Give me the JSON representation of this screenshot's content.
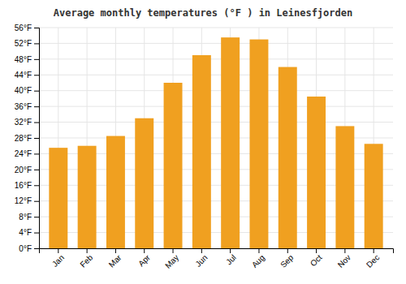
{
  "chart_data": {
    "type": "bar",
    "title": "Average monthly temperatures (°F ) in Leinesfjorden",
    "categories": [
      "Jan",
      "Feb",
      "Mar",
      "Apr",
      "May",
      "Jun",
      "Jul",
      "Aug",
      "Sep",
      "Oct",
      "Nov",
      "Dec"
    ],
    "values": [
      25.5,
      26.0,
      28.5,
      33.0,
      42.0,
      49.0,
      53.5,
      53.0,
      46.0,
      38.5,
      31.0,
      26.5
    ],
    "color": "#F0A020",
    "ylim": [
      0,
      56
    ],
    "yticks": [
      {
        "value": 0,
        "label": "0°F"
      },
      {
        "value": 4,
        "label": "4°F"
      },
      {
        "value": 8,
        "label": "8°F"
      },
      {
        "value": 12,
        "label": "12°F"
      },
      {
        "value": 16,
        "label": "16°F"
      },
      {
        "value": 20,
        "label": "20°F"
      },
      {
        "value": 24,
        "label": "24°F"
      },
      {
        "value": 28,
        "label": "28°F"
      },
      {
        "value": 32,
        "label": "32°F"
      },
      {
        "value": 36,
        "label": "36°F"
      },
      {
        "value": 40,
        "label": "40°F"
      },
      {
        "value": 44,
        "label": "44°F"
      },
      {
        "value": 48,
        "label": "48°F"
      },
      {
        "value": 52,
        "label": "52°F"
      },
      {
        "value": 56,
        "label": "56°F"
      }
    ],
    "grid": true
  }
}
